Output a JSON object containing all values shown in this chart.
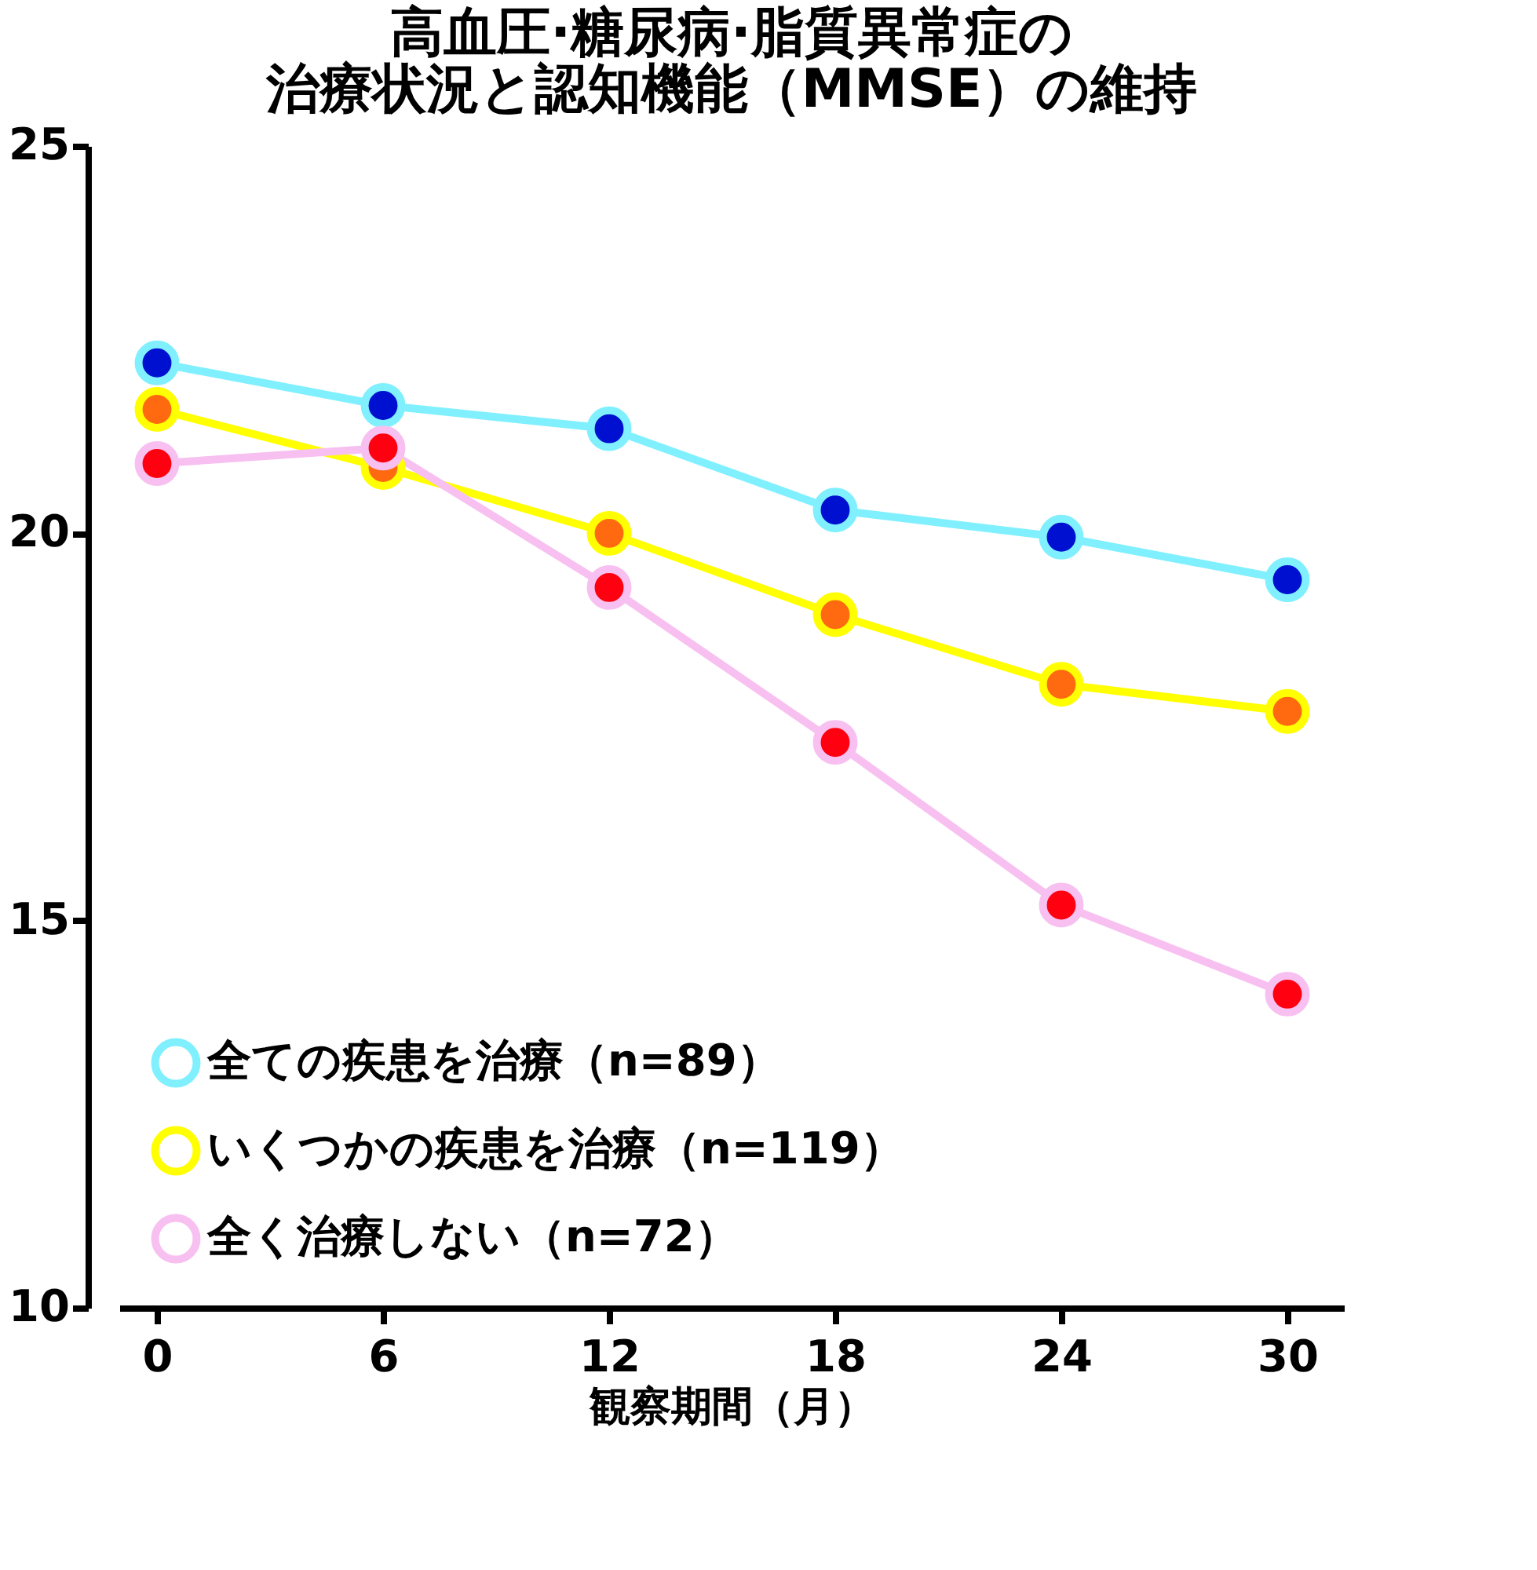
{
  "chart_data": {
    "type": "line",
    "title": "高血圧·糖尿病·脂質異常症の治療状況と認知機能（MMSE）の維持",
    "xlabel": "観察期間（月）",
    "x": [
      0,
      6,
      12,
      18,
      24,
      30
    ],
    "series": [
      {
        "name": "全ての疾患を治療（n=89）",
        "color": "#80f0ff",
        "values": [
          22.2,
          21.65,
          21.35,
          20.3,
          19.95,
          19.4
        ]
      },
      {
        "name": "いくつかの疾患を治療（n=119）",
        "color": "#ffff00",
        "values": [
          21.6,
          20.85,
          20.0,
          18.95,
          18.05,
          17.7
        ]
      },
      {
        "name": "全く治療しない（n=72）",
        "color": "#f8c0f0",
        "values": [
          20.9,
          21.1,
          19.3,
          17.3,
          15.2,
          14.05
        ]
      }
    ],
    "xlim": [
      -1,
      31.5
    ],
    "ylim": [
      10,
      25
    ],
    "xticks": [
      0,
      6,
      12,
      18,
      24,
      30
    ],
    "yticks": [
      10,
      15,
      20,
      25
    ],
    "grid": false,
    "legend": "bottom left",
    "marker": "circle",
    "line_style": "solid"
  }
}
